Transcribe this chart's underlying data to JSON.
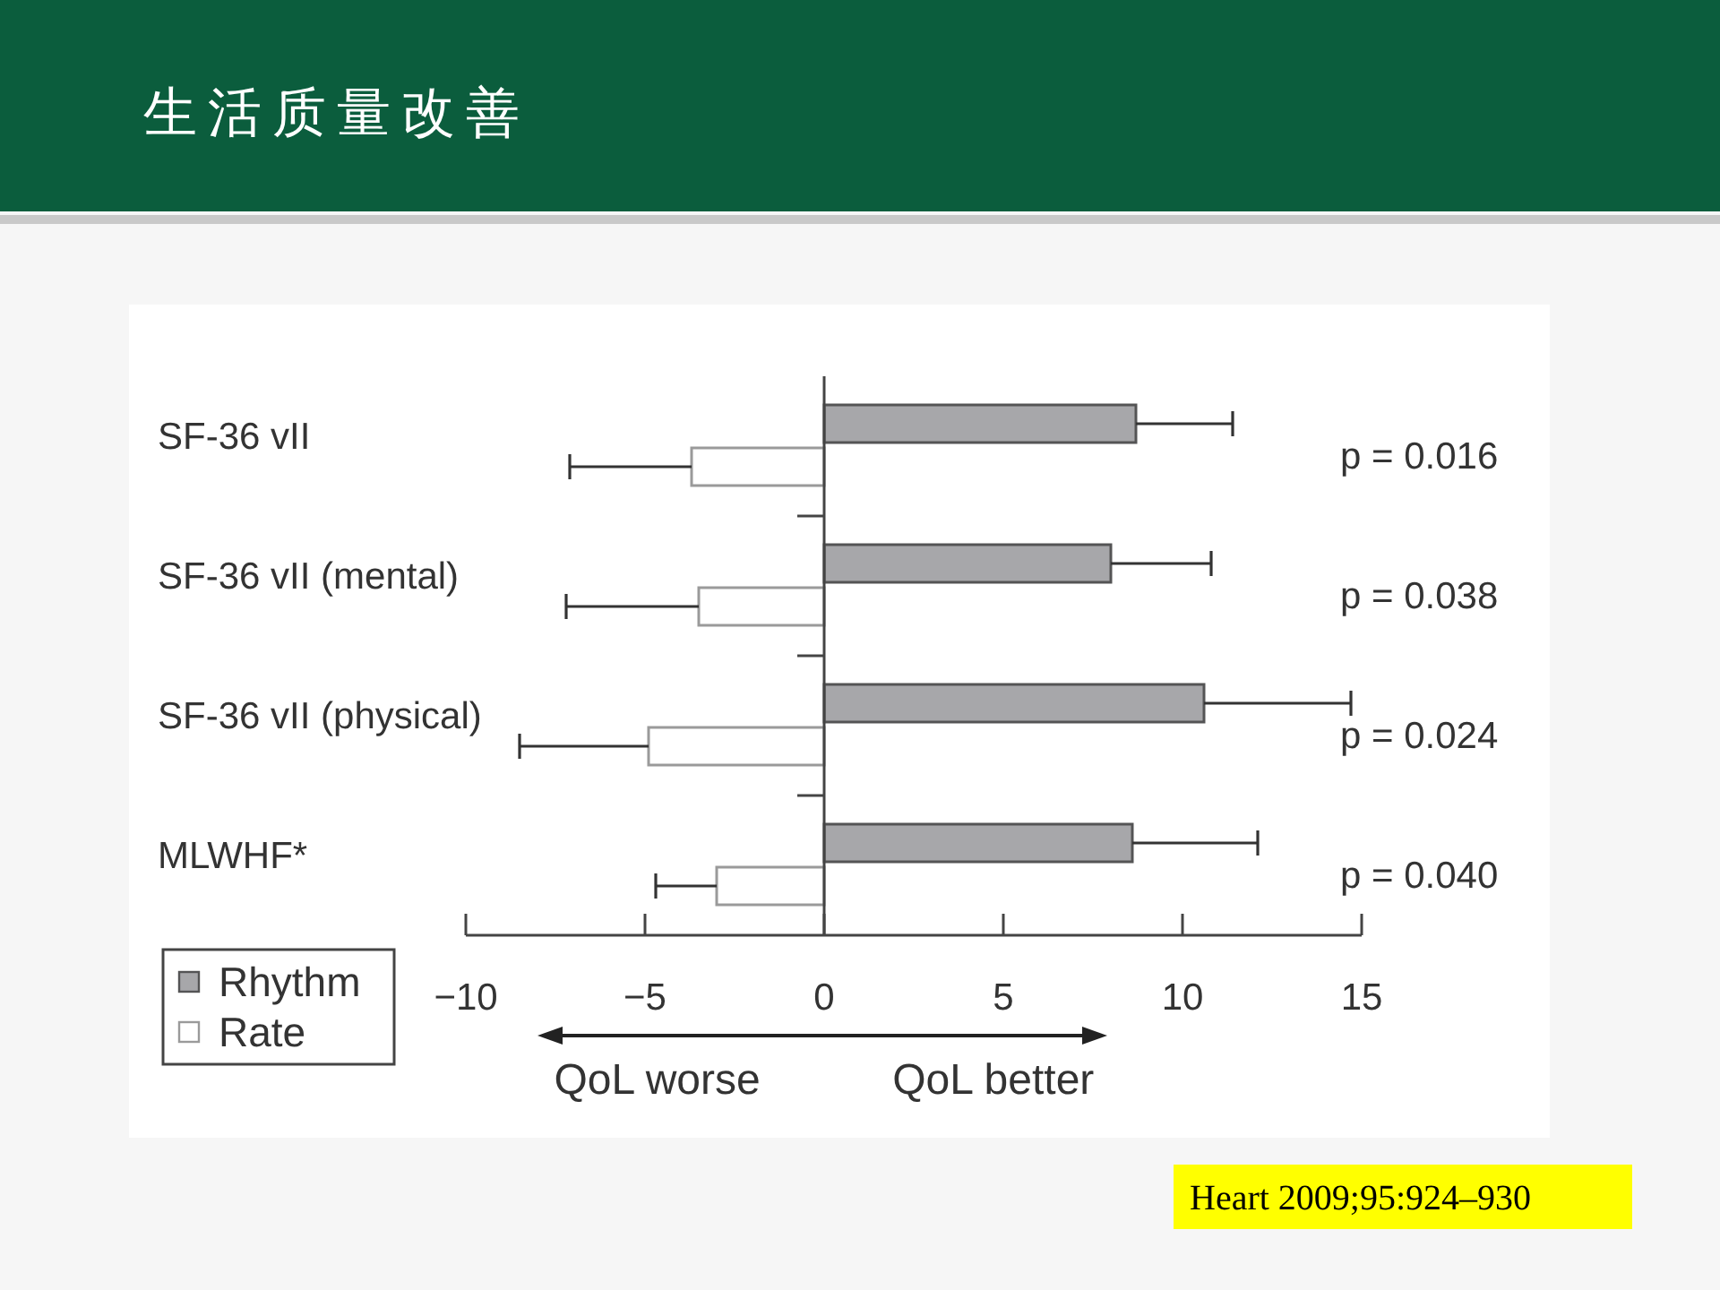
{
  "chart_data": {
    "type": "bar",
    "orientation": "horizontal",
    "title": "生活质量改善",
    "categories": [
      "SF-36 vII",
      "SF-36 vII (mental)",
      "SF-36 vII (physical)",
      "MLWHF*"
    ],
    "series": [
      {
        "name": "Rhythm",
        "color": "#a7a7aa",
        "values": [
          8.7,
          8.0,
          10.6,
          8.6
        ],
        "errors": [
          [
            8.7,
            11.4
          ],
          [
            8.0,
            10.8
          ],
          [
            10.6,
            14.7
          ],
          [
            8.6,
            12.1
          ]
        ]
      },
      {
        "name": "Rate",
        "color": "#ffffff",
        "values": [
          -3.7,
          -3.5,
          -4.9,
          -3.0
        ],
        "errors": [
          [
            -7.1,
            -3.7
          ],
          [
            -7.2,
            -3.5
          ],
          [
            -8.5,
            -4.9
          ],
          [
            -4.7,
            -3.0
          ]
        ]
      }
    ],
    "xlim": [
      -10,
      15
    ],
    "xticks": [
      {
        "value": -10,
        "label": "−10"
      },
      {
        "value": -5,
        "label": "−5"
      },
      0,
      5,
      10,
      15
    ],
    "legend": "bottom left",
    "annotations": [
      "p = 0.016",
      "p = 0.038",
      "p = 0.024",
      "p = 0.040",
      "QoL worse",
      "QoL better",
      "Heart 2009;95:924–930"
    ]
  }
}
